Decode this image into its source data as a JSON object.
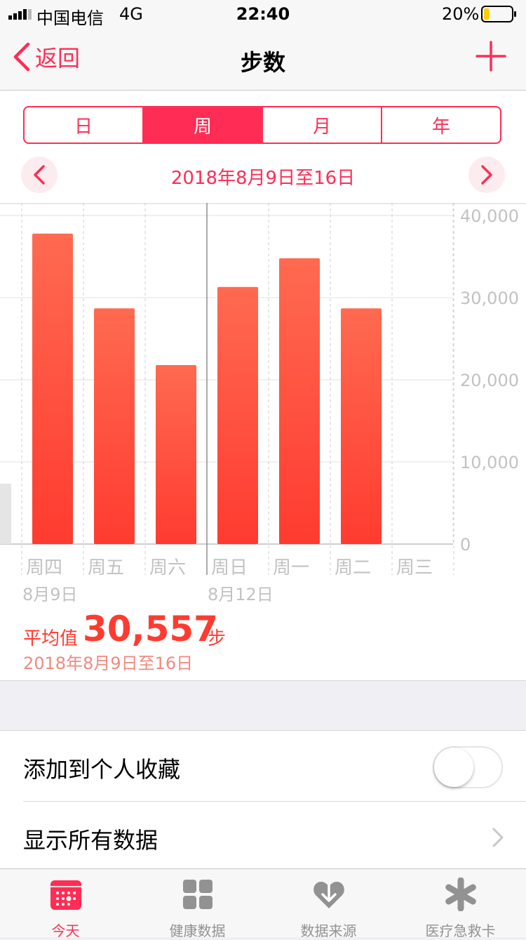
{
  "status_bar": {
    "carrier": "中国电信",
    "network": "4G",
    "time": "22:40",
    "battery": "20%",
    "battery_level": 0.2
  },
  "nav": {
    "back_label": "返回",
    "title": "步数",
    "add_icon": "plus-icon"
  },
  "segments": [
    {
      "label": "日",
      "active": false
    },
    {
      "label": "周",
      "active": true
    },
    {
      "label": "月",
      "active": false
    },
    {
      "label": "年",
      "active": false
    }
  ],
  "range_label": "2018年8月9日至16日",
  "chart_data": {
    "type": "bar",
    "categories": [
      "周四",
      "周五",
      "周六",
      "周日",
      "周一",
      "周二",
      "周三"
    ],
    "date_labels": [
      "8月9日",
      "",
      "",
      "8月12日",
      "",
      "",
      ""
    ],
    "values": [
      37800,
      28700,
      21800,
      31300,
      34800,
      28700,
      0
    ],
    "y_ticks": [
      "0",
      "10,000",
      "20,000",
      "30,000",
      "40,000"
    ],
    "ylim": [
      0,
      40000
    ],
    "grid": true,
    "y_axis_position": "right",
    "bar_color_top": "#ff6a50",
    "bar_color_bottom": "#ff3b30"
  },
  "summary": {
    "avg_label": "平均值",
    "avg_value": "30,557",
    "unit": "步",
    "range": "2018年8月9日至16日"
  },
  "list": [
    {
      "label": "添加到个人收藏",
      "type": "toggle",
      "on": false
    },
    {
      "label": "显示所有数据",
      "type": "chevron"
    }
  ],
  "tabs": [
    {
      "label": "今天",
      "icon": "calendar-icon",
      "active": true
    },
    {
      "label": "健康数据",
      "icon": "grid-icon",
      "active": false
    },
    {
      "label": "数据来源",
      "icon": "heart-download-icon",
      "active": false
    },
    {
      "label": "医疗急救卡",
      "icon": "medical-asterisk-icon",
      "active": false
    }
  ],
  "colors": {
    "accent": "#ff2d55",
    "bar": "#ff3b30",
    "inactive": "#929292"
  }
}
